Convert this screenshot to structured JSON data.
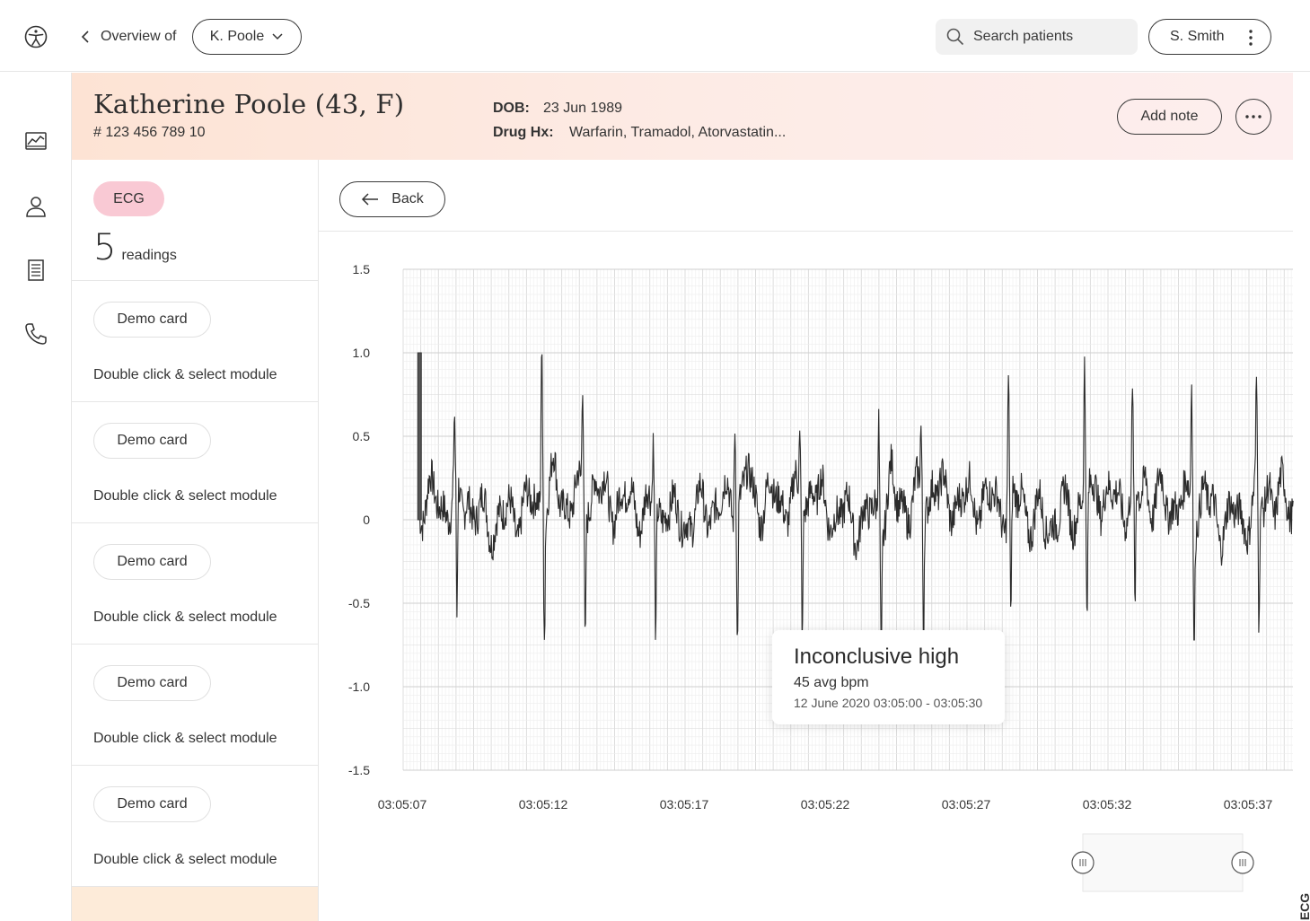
{
  "header": {
    "breadcrumb_label": "Overview of",
    "patient_selector": "K. Poole",
    "search_placeholder": "Search patients",
    "user_name": "S. Smith"
  },
  "patient": {
    "name": "Katherine Poole (43, F)",
    "id": "# 123 456 789 10",
    "dob_label": "DOB:",
    "dob": "23 Jun 1989",
    "drug_label": "Drug Hx:",
    "drugs": "Warfarin, Tramadol, Atorvastatin...",
    "add_note_label": "Add note"
  },
  "readings": {
    "tag": "ECG",
    "count": "5",
    "count_label": "readings",
    "cards": [
      {
        "label": "Demo card",
        "hint": "Double click & select module"
      },
      {
        "label": "Demo card",
        "hint": "Double click & select module"
      },
      {
        "label": "Demo card",
        "hint": "Double click & select module"
      },
      {
        "label": "Demo card",
        "hint": "Double click & select module"
      },
      {
        "label": "Demo card",
        "hint": "Double click & select module"
      }
    ]
  },
  "main": {
    "back_label": "Back"
  },
  "tooltip": {
    "title": "Inconclusive high",
    "bpm": "45 avg bpm",
    "range": "12 June 2020 03:05:00 - 03:05:30"
  },
  "side_label": "ECG",
  "chart_data": {
    "type": "line",
    "title": "",
    "xlabel": "",
    "ylabel": "",
    "ylim": [
      -1.5,
      1.5
    ],
    "yticks": [
      "1.5",
      "1.0",
      "0.5",
      "0",
      "-0.5",
      "-1.0",
      "-1.5"
    ],
    "xticks": [
      "03:05:07",
      "03:05:12",
      "03:05:17",
      "03:05:22",
      "03:05:27",
      "03:05:32",
      "03:05:37"
    ],
    "xlim_seconds": [
      0,
      31.6
    ],
    "grid": true,
    "calibration_pulse_mv": 1.0,
    "beat_times_seconds": [
      1.85,
      4.95,
      6.4,
      8.9,
      11.8,
      14.1,
      16.9,
      18.4,
      21.5,
      24.2,
      25.9,
      28.0,
      30.3
    ],
    "r_peak_mv": [
      0.45,
      1.13,
      0.7,
      0.4,
      0.62,
      0.35,
      0.6,
      0.4,
      0.78,
      0.83,
      0.5,
      0.85,
      0.65
    ],
    "s_trough_mv": -0.72
  },
  "colors": {
    "header_gradient_start": "#fde3d4",
    "header_gradient_end": "#fdeeee",
    "ecg_tag": "#f9c9d4",
    "trace": "#2b2b2b",
    "grid_major": "#d9d9d9",
    "grid_minor": "#eeeeee"
  }
}
